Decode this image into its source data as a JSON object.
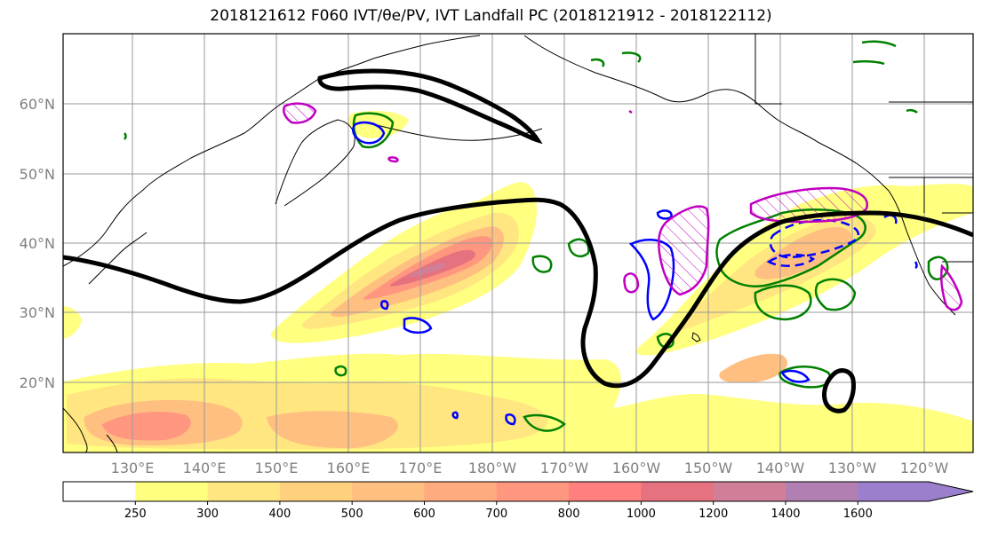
{
  "title": "2018121612 F060 IVT/θe/PV, IVT Landfall PC (2018121912 - 2018122112)",
  "lat_labels": [
    "60°N",
    "50°N",
    "40°N",
    "30°N",
    "20°N"
  ],
  "lon_labels": [
    "130°E",
    "140°E",
    "150°E",
    "160°E",
    "170°E",
    "180°W",
    "170°W",
    "160°W",
    "150°W",
    "140°W",
    "130°W",
    "120°W"
  ],
  "colorbar": {
    "ticks": [
      "250",
      "300",
      "400",
      "500",
      "600",
      "700",
      "800",
      "1000",
      "1200",
      "1400",
      "1600"
    ],
    "colors": [
      "#ffffff",
      "#ffff80",
      "#ffe680",
      "#ffd17f",
      "#ffbf80",
      "#ffaa7f",
      "#ff967f",
      "#ff807f",
      "#e6727f",
      "#d17f99",
      "#b27fb2",
      "#9c7fcc"
    ]
  },
  "legend_colors": {
    "contour_black": "#000000",
    "contour_green": "#008000",
    "contour_blue": "#0000ff",
    "contour_magenta": "#c000c0"
  }
}
